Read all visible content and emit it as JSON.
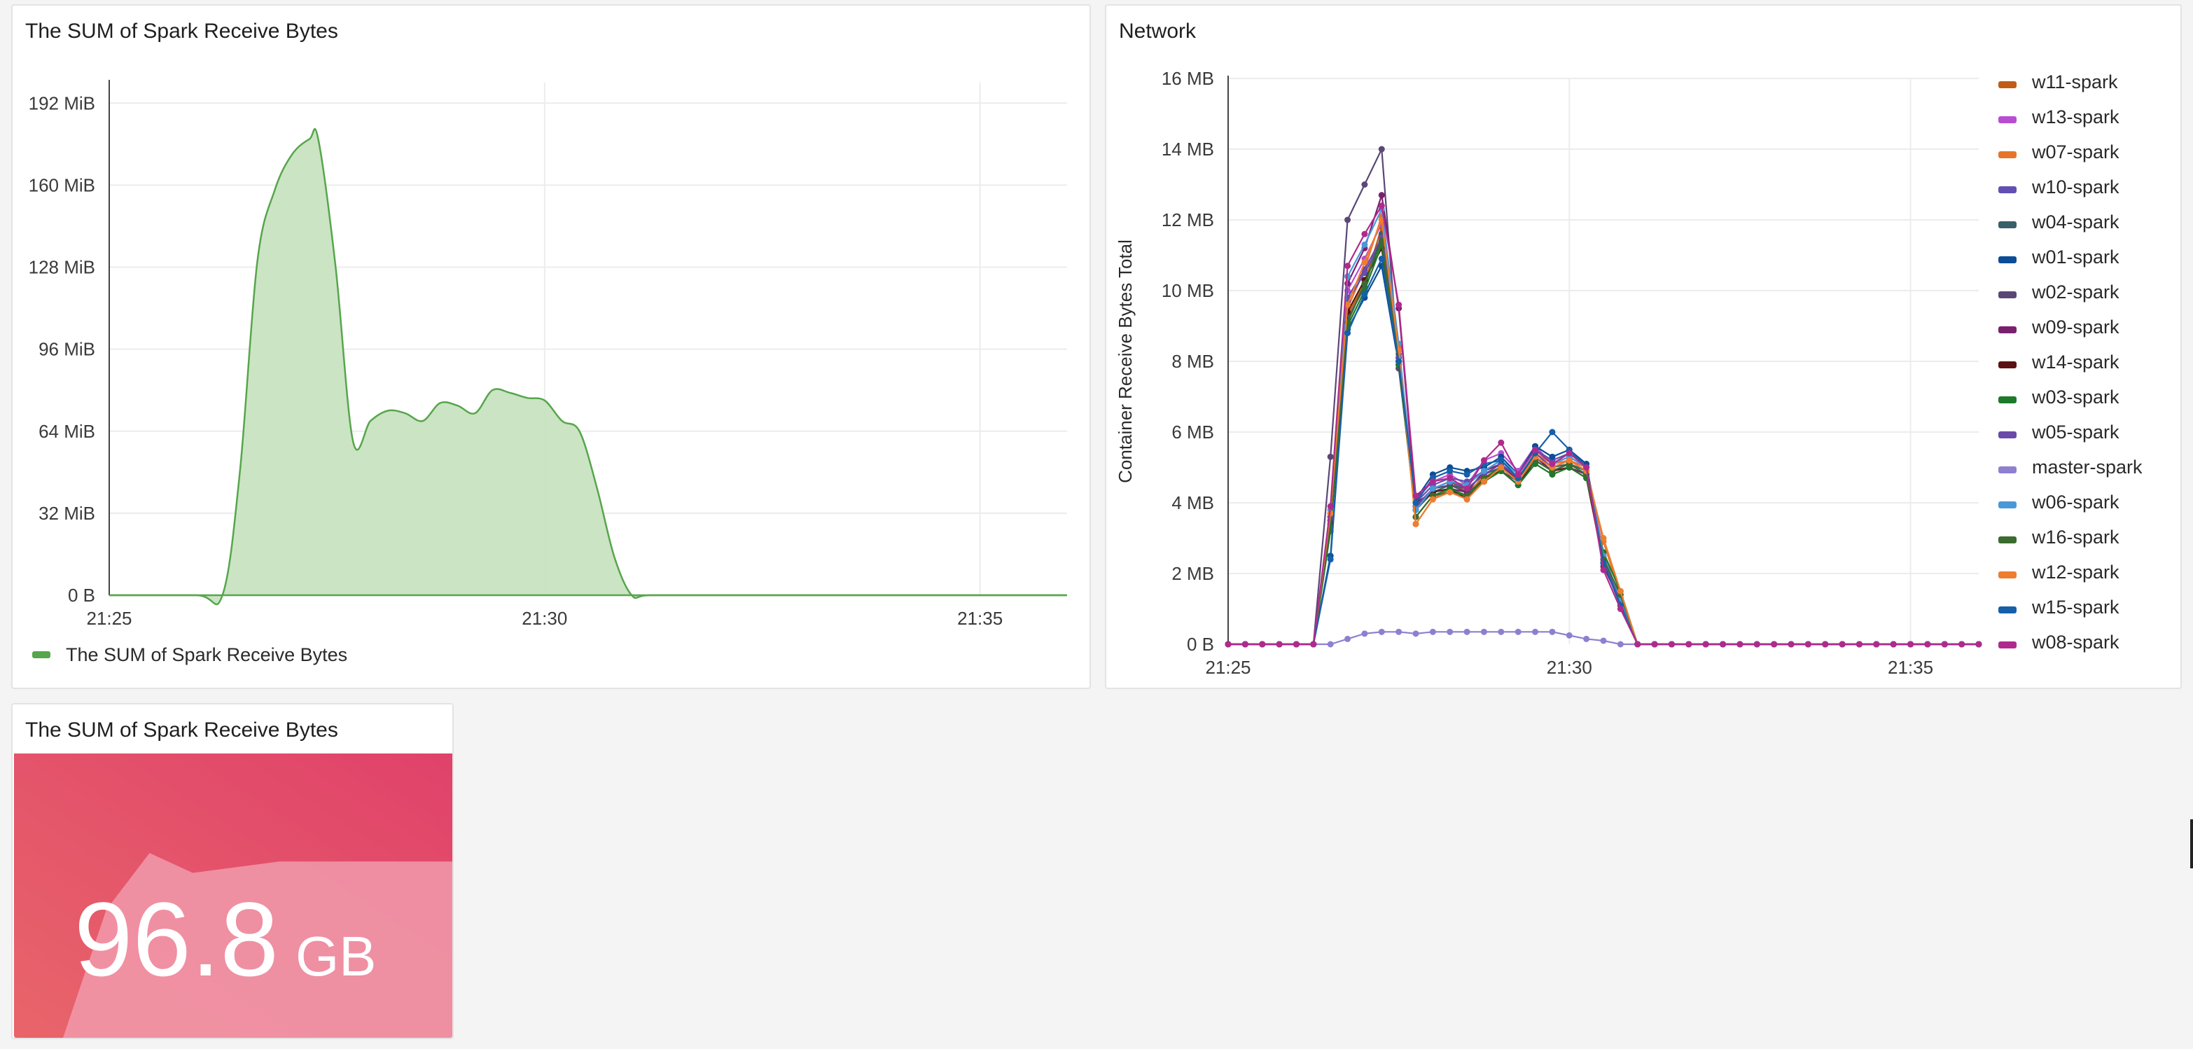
{
  "panels": {
    "sum_chart": {
      "title": "The SUM of Spark Receive Bytes",
      "legend_label": "The SUM of Spark Receive Bytes",
      "color": "#56a64b",
      "fill_color": "#c8e3c1"
    },
    "network_chart": {
      "title": "Network",
      "ylabel": "Container Receive Bytes Total"
    },
    "stat": {
      "title": "The SUM of Spark Receive Bytes",
      "value": "96.8",
      "unit": "GB",
      "colors": {
        "gradient_start": "#e8656a",
        "gradient_end": "#e0426a",
        "sparkline_fill": "#f19aab"
      }
    }
  },
  "chart_data": [
    {
      "type": "area",
      "title": "The SUM of Spark Receive Bytes",
      "xlabel": "",
      "ylabel": "",
      "x_ticks": [
        "21:25",
        "21:30",
        "21:35"
      ],
      "y_ticks": [
        "0 B",
        "32 MiB",
        "64 MiB",
        "96 MiB",
        "128 MiB",
        "160 MiB",
        "192 MiB"
      ],
      "xlim": [
        "21:25",
        "21:36"
      ],
      "ylim": [
        0,
        200
      ],
      "y_unit": "MiB",
      "grid": true,
      "legend": "bottom-left",
      "series": [
        {
          "name": "The SUM of Spark Receive Bytes",
          "color": "#56a64b",
          "x": [
            "21:25",
            "21:26",
            "21:26.3",
            "21:26.5",
            "21:26.7",
            "21:26.9",
            "21:27.1",
            "21:27.3",
            "21:27.4",
            "21:27.6",
            "21:27.8",
            "21:28",
            "21:28.2",
            "21:28.4",
            "21:28.6",
            "21:28.8",
            "21:29",
            "21:29.2",
            "21:29.4",
            "21:29.6",
            "21:29.8",
            "21:30",
            "21:30.2",
            "21:30.4",
            "21:30.6",
            "21:30.8",
            "21:31",
            "21:31.2",
            "21:32",
            "21:36"
          ],
          "values": [
            0,
            0,
            0,
            48,
            130,
            158,
            172,
            178,
            178,
            128,
            60,
            68,
            72,
            71,
            68,
            75,
            74,
            71,
            80,
            79,
            77,
            76,
            68,
            64,
            42,
            15,
            0,
            0,
            0,
            0
          ]
        }
      ]
    },
    {
      "type": "line",
      "title": "Network",
      "ylabel": "Container Receive Bytes Total",
      "x_ticks": [
        "21:25",
        "21:30",
        "21:35"
      ],
      "y_ticks": [
        "0 B",
        "2 MB",
        "4 MB",
        "6 MB",
        "8 MB",
        "10 MB",
        "12 MB",
        "14 MB",
        "16 MB"
      ],
      "xlim": [
        "21:25",
        "21:36"
      ],
      "ylim": [
        0,
        16
      ],
      "y_unit": "MB",
      "grid": true,
      "legend": "right",
      "x": [
        "21:25",
        "21:25.25",
        "21:25.5",
        "21:25.75",
        "21:26",
        "21:26.25",
        "21:26.5",
        "21:26.75",
        "21:27",
        "21:27.25",
        "21:27.5",
        "21:27.75",
        "21:28",
        "21:28.25",
        "21:28.5",
        "21:28.75",
        "21:29",
        "21:29.25",
        "21:29.5",
        "21:29.75",
        "21:30",
        "21:30.25",
        "21:30.5",
        "21:30.75",
        "21:31",
        "21:31.25",
        "21:31.5",
        "21:31.75",
        "21:32",
        "21:32.25",
        "21:32.5",
        "21:32.75",
        "21:33",
        "21:33.25",
        "21:33.5",
        "21:33.75",
        "21:34",
        "21:34.25",
        "21:34.5",
        "21:34.75",
        "21:35",
        "21:35.25",
        "21:35.5",
        "21:35.75",
        "21:36"
      ],
      "series": [
        {
          "name": "w11-spark",
          "color": "#c15c17",
          "values": [
            0,
            0,
            0,
            0,
            0,
            0,
            3.7,
            9.3,
            10.2,
            11.8,
            8.2,
            3.9,
            4.4,
            4.6,
            4.3,
            4.7,
            5.0,
            4.6,
            5.3,
            5.0,
            5.2,
            4.9,
            2.5,
            1.3,
            0,
            0,
            0,
            0,
            0,
            0,
            0,
            0,
            0,
            0,
            0,
            0,
            0,
            0,
            0,
            0,
            0,
            0,
            0,
            0,
            0
          ]
        },
        {
          "name": "w13-spark",
          "color": "#b84dd4",
          "values": [
            0,
            0,
            0,
            0,
            0,
            0,
            3.5,
            10.0,
            10.9,
            11.9,
            8.3,
            4.1,
            4.6,
            4.8,
            4.5,
            5.2,
            5.4,
            4.9,
            5.6,
            5.1,
            5.3,
            5.0,
            2.6,
            1.2,
            0,
            0,
            0,
            0,
            0,
            0,
            0,
            0,
            0,
            0,
            0,
            0,
            0,
            0,
            0,
            0,
            0,
            0,
            0,
            0,
            0
          ]
        },
        {
          "name": "w07-spark",
          "color": "#e8742a",
          "values": [
            0,
            0,
            0,
            0,
            0,
            0,
            3.6,
            9.5,
            10.6,
            12.1,
            8.4,
            3.4,
            4.1,
            4.4,
            4.2,
            4.8,
            5.1,
            4.7,
            5.4,
            5.1,
            5.2,
            5.0,
            2.9,
            1.4,
            0,
            0,
            0,
            0,
            0,
            0,
            0,
            0,
            0,
            0,
            0,
            0,
            0,
            0,
            0,
            0,
            0,
            0,
            0,
            0,
            0
          ]
        },
        {
          "name": "w10-spark",
          "color": "#6150b2",
          "values": [
            0,
            0,
            0,
            0,
            0,
            0,
            3.4,
            9.7,
            10.5,
            11.4,
            8.0,
            4.0,
            4.5,
            4.7,
            4.6,
            4.9,
            5.2,
            4.8,
            5.5,
            5.2,
            5.4,
            5.1,
            2.4,
            1.3,
            0,
            0,
            0,
            0,
            0,
            0,
            0,
            0,
            0,
            0,
            0,
            0,
            0,
            0,
            0,
            0,
            0,
            0,
            0,
            0,
            0
          ]
        },
        {
          "name": "w04-spark",
          "color": "#3a5e6a",
          "values": [
            0,
            0,
            0,
            0,
            0,
            0,
            3.3,
            9.2,
            10.1,
            11.6,
            8.1,
            3.8,
            4.3,
            4.5,
            4.4,
            4.8,
            5.0,
            4.7,
            5.3,
            5.0,
            5.1,
            4.9,
            2.3,
            1.2,
            0,
            0,
            0,
            0,
            0,
            0,
            0,
            0,
            0,
            0,
            0,
            0,
            0,
            0,
            0,
            0,
            0,
            0,
            0,
            0,
            0
          ]
        },
        {
          "name": "w01-spark",
          "color": "#0b4d96",
          "values": [
            0,
            0,
            0,
            0,
            0,
            0,
            2.5,
            8.9,
            9.8,
            10.7,
            7.9,
            4.1,
            4.8,
            5.0,
            4.9,
            5.0,
            5.3,
            4.8,
            5.6,
            5.3,
            5.5,
            5.1,
            2.4,
            1.1,
            0,
            0,
            0,
            0,
            0,
            0,
            0,
            0,
            0,
            0,
            0,
            0,
            0,
            0,
            0,
            0,
            0,
            0,
            0,
            0,
            0
          ]
        },
        {
          "name": "w02-spark",
          "color": "#5b4676",
          "values": [
            0,
            0,
            0,
            0,
            0,
            0,
            5.3,
            12.0,
            13.0,
            14.0,
            7.8,
            3.8,
            4.4,
            4.5,
            4.3,
            4.6,
            4.9,
            4.6,
            5.2,
            4.9,
            5.1,
            4.8,
            2.3,
            1.1,
            0,
            0,
            0,
            0,
            0,
            0,
            0,
            0,
            0,
            0,
            0,
            0,
            0,
            0,
            0,
            0,
            0,
            0,
            0,
            0,
            0
          ]
        },
        {
          "name": "w09-spark",
          "color": "#7a1f6e",
          "values": [
            0,
            0,
            0,
            0,
            0,
            0,
            3.5,
            10.2,
            11.2,
            12.7,
            9.5,
            4.0,
            4.3,
            4.4,
            4.3,
            4.9,
            5.1,
            4.6,
            5.3,
            4.9,
            5.0,
            4.8,
            2.2,
            1.2,
            0,
            0,
            0,
            0,
            0,
            0,
            0,
            0,
            0,
            0,
            0,
            0,
            0,
            0,
            0,
            0,
            0,
            0,
            0,
            0,
            0
          ]
        },
        {
          "name": "w14-spark",
          "color": "#5c1212",
          "values": [
            0,
            0,
            0,
            0,
            0,
            0,
            3.4,
            9.4,
            10.3,
            11.2,
            8.0,
            3.9,
            4.3,
            4.4,
            4.1,
            4.7,
            4.9,
            4.5,
            5.2,
            4.9,
            5.0,
            4.7,
            2.3,
            1.1,
            0,
            0,
            0,
            0,
            0,
            0,
            0,
            0,
            0,
            0,
            0,
            0,
            0,
            0,
            0,
            0,
            0,
            0,
            0,
            0,
            0
          ]
        },
        {
          "name": "w03-spark",
          "color": "#1e7a2a",
          "values": [
            0,
            0,
            0,
            0,
            0,
            0,
            3.2,
            9.0,
            10.0,
            11.3,
            7.9,
            3.6,
            4.2,
            4.4,
            4.2,
            4.6,
            4.9,
            4.5,
            5.1,
            4.8,
            5.0,
            4.7,
            2.6,
            1.5,
            0,
            0,
            0,
            0,
            0,
            0,
            0,
            0,
            0,
            0,
            0,
            0,
            0,
            0,
            0,
            0,
            0,
            0,
            0,
            0,
            0
          ]
        },
        {
          "name": "w05-spark",
          "color": "#6b4aa8",
          "values": [
            0,
            0,
            0,
            0,
            0,
            0,
            3.6,
            9.8,
            10.6,
            11.5,
            8.1,
            3.9,
            4.4,
            4.6,
            4.4,
            4.8,
            5.1,
            4.7,
            5.4,
            5.0,
            5.2,
            4.9,
            2.4,
            1.2,
            0,
            0,
            0,
            0,
            0,
            0,
            0,
            0,
            0,
            0,
            0,
            0,
            0,
            0,
            0,
            0,
            0,
            0,
            0,
            0,
            0
          ]
        },
        {
          "name": "master-spark",
          "color": "#8f7fd0",
          "values": [
            0,
            0,
            0,
            0,
            0,
            0,
            0,
            0.15,
            0.3,
            0.35,
            0.35,
            0.3,
            0.35,
            0.35,
            0.35,
            0.35,
            0.35,
            0.35,
            0.35,
            0.35,
            0.25,
            0.15,
            0.1,
            0,
            0,
            0,
            0,
            0,
            0,
            0,
            0,
            0,
            0,
            0,
            0,
            0,
            0,
            0,
            0,
            0,
            0,
            0,
            0,
            0,
            0
          ]
        },
        {
          "name": "w06-spark",
          "color": "#4a98d8",
          "values": [
            0,
            0,
            0,
            0,
            0,
            0,
            3.8,
            10.4,
            11.3,
            12.3,
            8.5,
            3.8,
            4.4,
            4.6,
            4.5,
            4.9,
            5.2,
            4.8,
            5.5,
            5.1,
            5.3,
            5.0,
            2.5,
            1.3,
            0,
            0,
            0,
            0,
            0,
            0,
            0,
            0,
            0,
            0,
            0,
            0,
            0,
            0,
            0,
            0,
            0,
            0,
            0,
            0,
            0
          ]
        },
        {
          "name": "w16-spark",
          "color": "#3b6b2e",
          "values": [
            0,
            0,
            0,
            0,
            0,
            0,
            3.3,
            9.1,
            10.2,
            11.4,
            8.0,
            3.6,
            4.2,
            4.3,
            4.2,
            4.7,
            5.0,
            4.6,
            5.2,
            4.9,
            5.1,
            4.8,
            2.4,
            1.4,
            0,
            0,
            0,
            0,
            0,
            0,
            0,
            0,
            0,
            0,
            0,
            0,
            0,
            0,
            0,
            0,
            0,
            0,
            0,
            0,
            0
          ]
        },
        {
          "name": "w12-spark",
          "color": "#ef7d2e",
          "values": [
            0,
            0,
            0,
            0,
            0,
            0,
            3.7,
            9.6,
            10.8,
            12.0,
            8.3,
            3.4,
            4.1,
            4.3,
            4.1,
            4.6,
            5.0,
            4.6,
            5.3,
            5.0,
            5.2,
            4.9,
            3.0,
            1.5,
            0,
            0,
            0,
            0,
            0,
            0,
            0,
            0,
            0,
            0,
            0,
            0,
            0,
            0,
            0,
            0,
            0,
            0,
            0,
            0,
            0
          ]
        },
        {
          "name": "w15-spark",
          "color": "#1560a8",
          "values": [
            0,
            0,
            0,
            0,
            0,
            0,
            2.4,
            8.8,
            9.9,
            10.9,
            8.0,
            4.0,
            4.7,
            4.9,
            4.8,
            5.1,
            5.2,
            4.7,
            5.4,
            6.0,
            5.5,
            5.0,
            2.3,
            1.1,
            0,
            0,
            0,
            0,
            0,
            0,
            0,
            0,
            0,
            0,
            0,
            0,
            0,
            0,
            0,
            0,
            0,
            0,
            0,
            0,
            0
          ]
        },
        {
          "name": "w08-spark",
          "color": "#b02a8e",
          "values": [
            0,
            0,
            0,
            0,
            0,
            0,
            3.9,
            10.7,
            11.6,
            12.4,
            9.6,
            4.2,
            4.6,
            4.7,
            4.4,
            5.2,
            5.7,
            4.8,
            5.5,
            5.1,
            5.4,
            5.0,
            2.1,
            1.0,
            0,
            0,
            0,
            0,
            0,
            0,
            0,
            0,
            0,
            0,
            0,
            0,
            0,
            0,
            0,
            0,
            0,
            0,
            0,
            0,
            0
          ]
        }
      ]
    },
    {
      "type": "area",
      "title": "The SUM of Spark Receive Bytes",
      "note_value": "96.8 GB",
      "sparkline_values": [
        0,
        0.45,
        0.65,
        0.58,
        0.6,
        0.62,
        0.62,
        0.62,
        0.62,
        0.62
      ]
    }
  ]
}
